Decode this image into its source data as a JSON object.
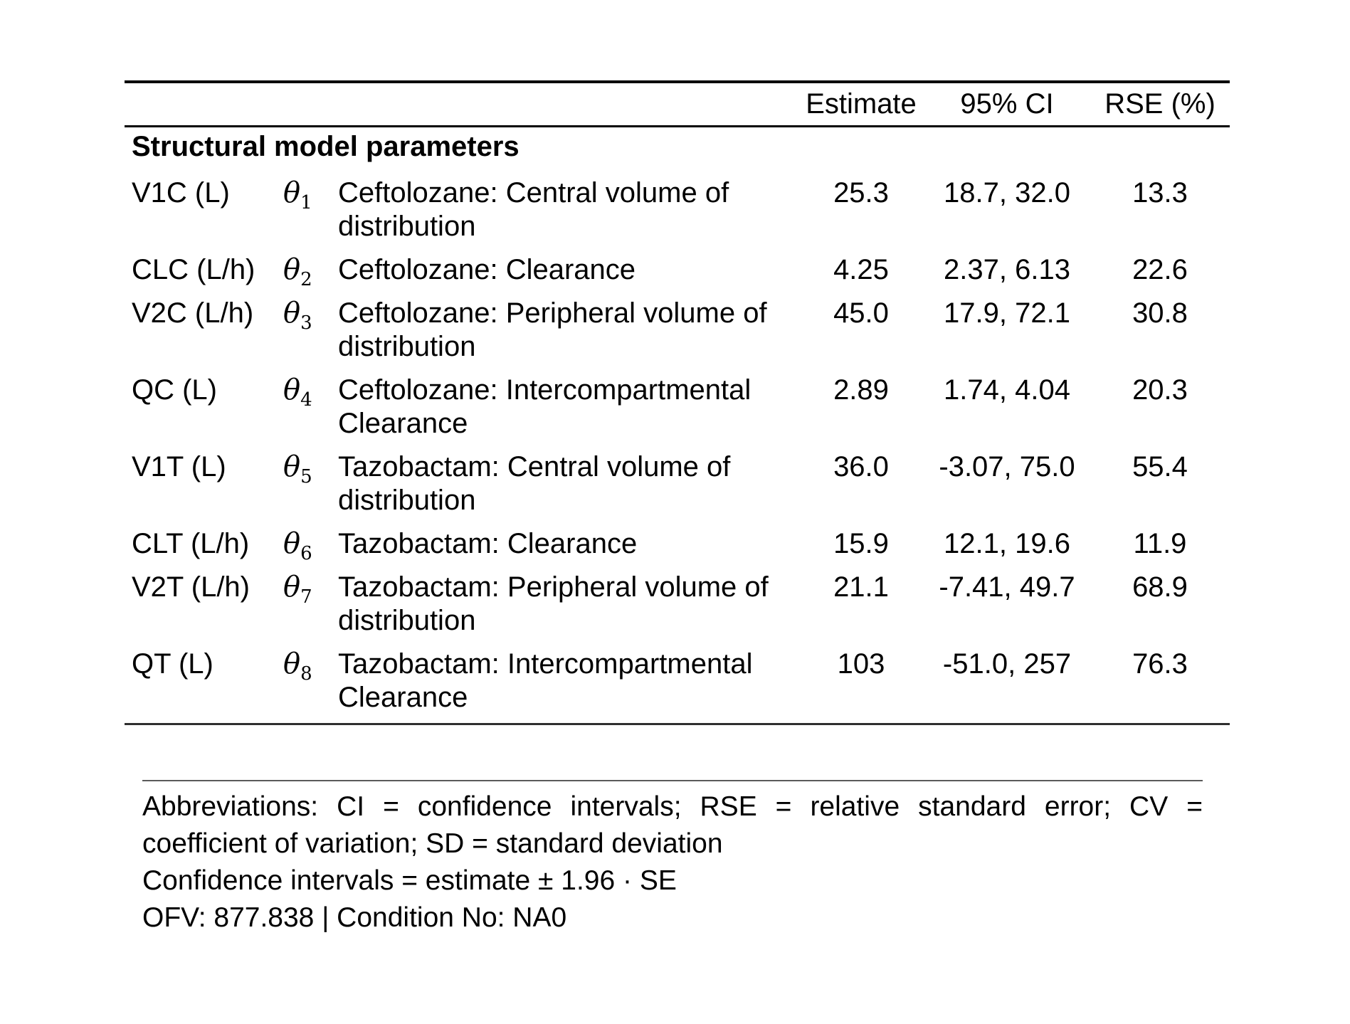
{
  "table": {
    "columns": [
      "Estimate",
      "95% CI",
      "RSE (%)"
    ],
    "section_header": "Structural model parameters",
    "rows": [
      {
        "param": "V1C (L)",
        "theta": "θ",
        "theta_sub": "1",
        "description": "Ceftolozane: Central volume of\ndistribution",
        "estimate": "25.3",
        "ci": "18.7, 32.0",
        "rse": "13.3"
      },
      {
        "param": "CLC (L/h)",
        "theta": "θ",
        "theta_sub": "2",
        "description": "Ceftolozane: Clearance",
        "estimate": "4.25",
        "ci": "2.37, 6.13",
        "rse": "22.6"
      },
      {
        "param": "V2C (L/h)",
        "theta": "θ",
        "theta_sub": "3",
        "description": "Ceftolozane: Peripheral volume of\ndistribution",
        "estimate": "45.0",
        "ci": "17.9, 72.1",
        "rse": "30.8"
      },
      {
        "param": "QC (L)",
        "theta": "θ",
        "theta_sub": "4",
        "description": "Ceftolozane: Intercompartmental\nClearance",
        "estimate": "2.89",
        "ci": "1.74, 4.04",
        "rse": "20.3"
      },
      {
        "param": "V1T (L)",
        "theta": "θ",
        "theta_sub": "5",
        "description": "Tazobactam: Central volume of\ndistribution",
        "estimate": "36.0",
        "ci": "-3.07, 75.0",
        "rse": "55.4"
      },
      {
        "param": "CLT (L/h)",
        "theta": "θ",
        "theta_sub": "6",
        "description": "Tazobactam: Clearance",
        "estimate": "15.9",
        "ci": "12.1, 19.6",
        "rse": "11.9"
      },
      {
        "param": "V2T (L/h)",
        "theta": "θ",
        "theta_sub": "7",
        "description": "Tazobactam: Peripheral volume of\ndistribution",
        "estimate": "21.1",
        "ci": "-7.41, 49.7",
        "rse": "68.9"
      },
      {
        "param": "QT (L)",
        "theta": "θ",
        "theta_sub": "8",
        "description": "Tazobactam: Intercompartmental\nClearance",
        "estimate": "103",
        "ci": "-51.0, 257",
        "rse": "76.3"
      }
    ]
  },
  "footnotes": {
    "lines": [
      "Abbreviations: CI = confidence intervals; RSE = relative standard error; CV =",
      "coefficient of variation; SD = standard deviation",
      "Confidence intervals = estimate ± 1.96 · SE",
      "OFV: 877.838 | Condition No: NA0"
    ]
  }
}
